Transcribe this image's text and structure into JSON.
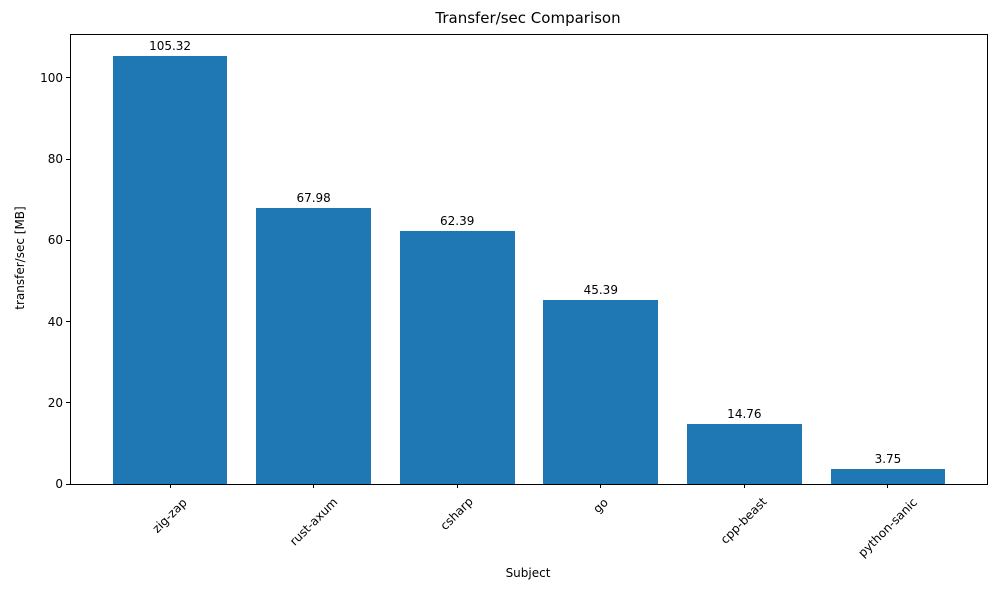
{
  "chart_data": {
    "type": "bar",
    "title": "Transfer/sec Comparison",
    "xlabel": "Subject",
    "ylabel": "transfer/sec [MB]",
    "categories": [
      "zig-zap",
      "rust-axum",
      "csharp",
      "go",
      "cpp-beast",
      "python-sanic"
    ],
    "values": [
      105.32,
      67.98,
      62.39,
      45.39,
      14.76,
      3.75
    ],
    "bar_labels": [
      "105.32",
      "67.98",
      "62.39",
      "45.39",
      "14.76",
      "3.75"
    ],
    "bar_color": "#1f77b4",
    "axis_color": "#000000",
    "text_color": "#000000",
    "ylim": [
      0,
      110.59
    ],
    "yticks": [
      0,
      20,
      40,
      60,
      80,
      100
    ],
    "x_tick_rotation_deg": 45,
    "grid": false,
    "legend_visible": false
  }
}
